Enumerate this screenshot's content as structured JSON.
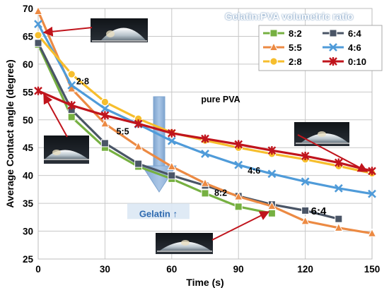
{
  "chart_data": {
    "type": "line",
    "xlabel": "Time (s)",
    "ylabel": "Average Contact angle (degree)",
    "xlim": [
      0,
      150
    ],
    "ylim": [
      25,
      70
    ],
    "xticks": [
      0,
      30,
      60,
      90,
      120,
      150
    ],
    "yticks": [
      25,
      30,
      35,
      40,
      45,
      50,
      55,
      60,
      65,
      70
    ],
    "grid": true,
    "legend_title": "Gelatin:PVA volumetric ratio",
    "legend_position": "top-right",
    "series": [
      {
        "name": "8:2",
        "color": "#76b041",
        "marker": "square",
        "x": [
          0,
          15,
          30,
          45,
          60,
          75,
          90,
          105
        ],
        "y": [
          63.5,
          50.5,
          45.0,
          41.6,
          39.4,
          36.8,
          34.4,
          33.2
        ]
      },
      {
        "name": "6:4",
        "color": "#4a5566",
        "marker": "square",
        "x": [
          0,
          15,
          30,
          45,
          60,
          75,
          90,
          105,
          120,
          135
        ],
        "y": [
          63.8,
          51.8,
          45.8,
          42.1,
          40.0,
          38.2,
          36.3,
          34.8,
          33.7,
          32.2
        ]
      },
      {
        "name": "5:5",
        "color": "#ec8a43",
        "marker": "triangle",
        "x": [
          0,
          15,
          30,
          45,
          60,
          75,
          90,
          105,
          120,
          135,
          150
        ],
        "y": [
          69.5,
          55.6,
          49.3,
          45.2,
          41.6,
          38.6,
          36.2,
          34.5,
          31.8,
          30.6,
          29.6
        ]
      },
      {
        "name": "4:6",
        "color": "#4f9bd9",
        "marker": "x",
        "x": [
          0,
          15,
          30,
          45,
          60,
          75,
          90,
          105,
          120,
          135,
          150
        ],
        "y": [
          67.2,
          56.2,
          52.0,
          49.2,
          46.2,
          43.9,
          41.9,
          40.3,
          38.9,
          37.7,
          36.7
        ]
      },
      {
        "name": "2:8",
        "color": "#f6be2d",
        "marker": "circle",
        "x": [
          0,
          15,
          30,
          45,
          60,
          75,
          90,
          105,
          120,
          135,
          150
        ],
        "y": [
          65.2,
          58.2,
          53.2,
          50.2,
          47.7,
          46.3,
          45.0,
          43.9,
          42.9,
          41.7,
          40.4
        ]
      },
      {
        "name": "0:10",
        "color": "#c0141c",
        "marker": "star",
        "x": [
          0,
          15,
          30,
          45,
          60,
          75,
          90,
          105,
          120,
          135,
          150
        ],
        "y": [
          55.2,
          52.6,
          50.8,
          49.3,
          47.6,
          46.6,
          45.6,
          44.5,
          43.5,
          42.3,
          40.8
        ]
      }
    ],
    "annotations": [
      {
        "text": "2:8",
        "at": [
          20,
          57.0
        ]
      },
      {
        "text": "5:5",
        "at": [
          38,
          48.0
        ]
      },
      {
        "text": "pure PVA",
        "at": [
          82,
          53.8
        ]
      },
      {
        "text": "4:6",
        "at": [
          97,
          41.0
        ]
      },
      {
        "text": "8:2",
        "at": [
          82,
          37.0
        ]
      },
      {
        "text": "6:4",
        "at": [
          126,
          33.6
        ]
      },
      {
        "text": "Gelatin ↑",
        "at": [
          54,
          33.2
        ]
      }
    ]
  }
}
